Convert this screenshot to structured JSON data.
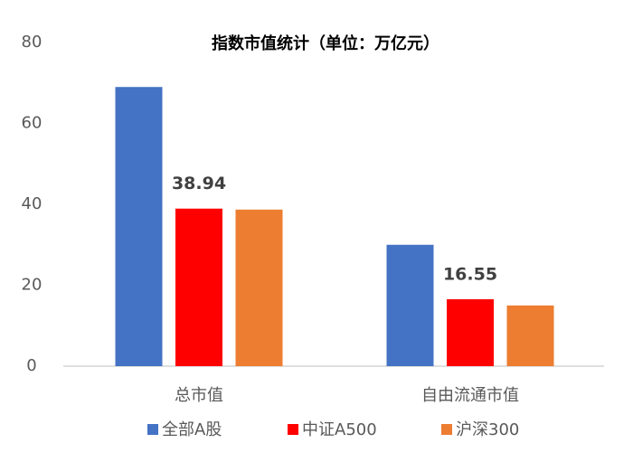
{
  "chart_data": {
    "type": "bar",
    "title": "指数市值统计（单位：万亿元）",
    "categories": [
      "总市值",
      "自由流通市值"
    ],
    "series": [
      {
        "name": "全部A股",
        "color": "#4472c4",
        "values": [
          69,
          30
        ]
      },
      {
        "name": "中证A500",
        "color": "#ff0000",
        "values": [
          38.94,
          16.55
        ],
        "data_labels": true
      },
      {
        "name": "沪深300",
        "color": "#ed7d31",
        "values": [
          38.7,
          15
        ]
      }
    ],
    "ylim": [
      0,
      80
    ],
    "yticks": [
      0,
      20,
      40,
      60,
      80
    ],
    "grid": false,
    "legend": "bottom"
  }
}
